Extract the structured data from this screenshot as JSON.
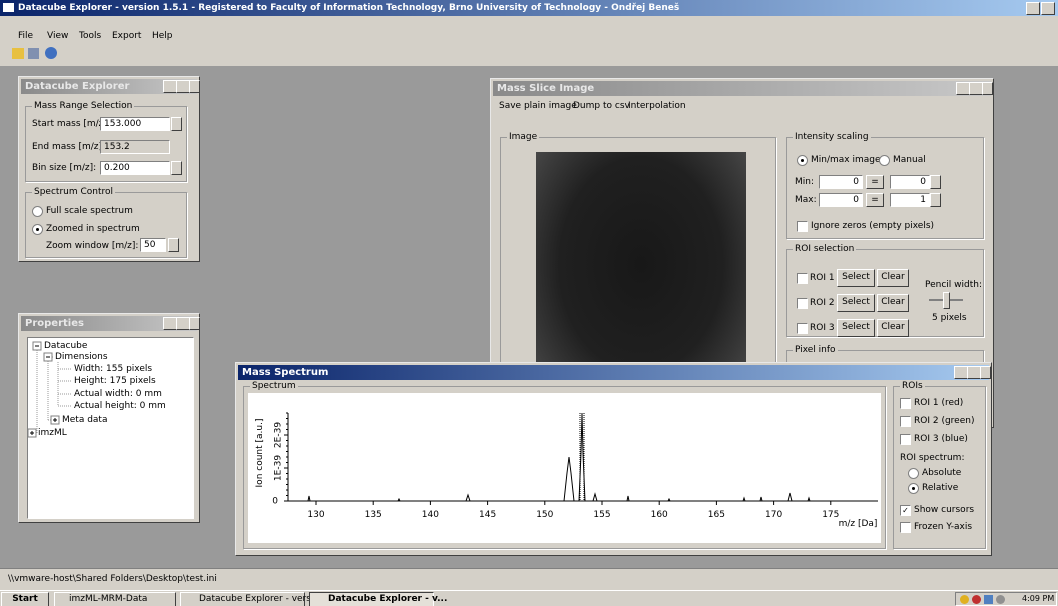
{
  "title_bar": {
    "title": "Datacube Explorer - version 1.5.1 - Registered to Faculty of Information Technology, Brno University of Technology - Ondřej Beneš"
  },
  "menu": [
    "File",
    "View",
    "Tools",
    "Export",
    "Help"
  ],
  "datacube_panel": {
    "title": "Datacube Explorer",
    "mass_range": {
      "label": "Mass Range Selection",
      "start_label": "Start mass [m/z]:",
      "start_value": "153.000",
      "end_label": "End mass [m/z]:",
      "end_value": "153.2",
      "bin_label": "Bin size [m/z]:",
      "bin_value": "0.200"
    },
    "spectrum_control": {
      "label": "Spectrum Control",
      "full": "Full scale spectrum",
      "zoomed": "Zoomed in spectrum",
      "zoom_label": "Zoom window [m/z]:",
      "zoom_value": "50"
    }
  },
  "properties_panel": {
    "title": "Properties",
    "tree": [
      "Datacube",
      "Dimensions",
      "Width: 155 pixels",
      "Height: 175 pixels",
      "Actual width: 0 mm",
      "Actual height: 0 mm",
      "Meta data",
      "imzML"
    ]
  },
  "mass_slice": {
    "title": "Mass Slice Image",
    "menu": [
      "Save plain image",
      "Dump to csv",
      "Interpolation"
    ],
    "image_label": "Image",
    "intensity": {
      "label": "Intensity scaling",
      "minmax": "Min/max image",
      "manual": "Manual",
      "min_label": "Min:",
      "min_value": "0",
      "min_eq": "=",
      "min_manual": "0",
      "max_label": "Max:",
      "max_value": "0",
      "max_eq": "=",
      "max_manual": "1",
      "ignore_zeros": "Ignore zeros (empty pixels)"
    },
    "roi": {
      "label": "ROI selection",
      "rows": [
        {
          "name": "ROI 1",
          "select": "Select",
          "clear": "Clear"
        },
        {
          "name": "ROI 2",
          "select": "Select",
          "clear": "Clear"
        },
        {
          "name": "ROI 3",
          "select": "Select",
          "clear": "Clear"
        }
      ],
      "pencil_label": "Pencil width:",
      "pencil_value": "5 pixels"
    },
    "pixel_info": "Pixel info"
  },
  "mass_spectrum": {
    "title": "Mass Spectrum",
    "group": "Spectrum",
    "y_label": "Ion count [a.u.]",
    "y_ticks": [
      "0",
      "1E-39",
      "2E-39"
    ],
    "x_ticks": [
      "130",
      "135",
      "140",
      "145",
      "150",
      "155",
      "160",
      "165",
      "170",
      "175"
    ],
    "x_label": "m/z [Da]",
    "rois": {
      "label": "ROIs",
      "items": [
        "ROI 1 (red)",
        "ROI 2 (green)",
        "ROI 3 (blue)"
      ],
      "spectrum_label": "ROI spectrum:",
      "absolute": "Absolute",
      "relative": "Relative",
      "show_cursors": "Show cursors",
      "frozen": "Frozen Y-axis"
    }
  },
  "status_bar": "\\\\vmware-host\\Shared Folders\\Desktop\\test.ini",
  "taskbar": {
    "start": "Start",
    "items": [
      "imzML-MRM-Data",
      "Datacube Explorer - vers...",
      "Datacube Explorer - v..."
    ],
    "clock": "4:09 PM"
  }
}
